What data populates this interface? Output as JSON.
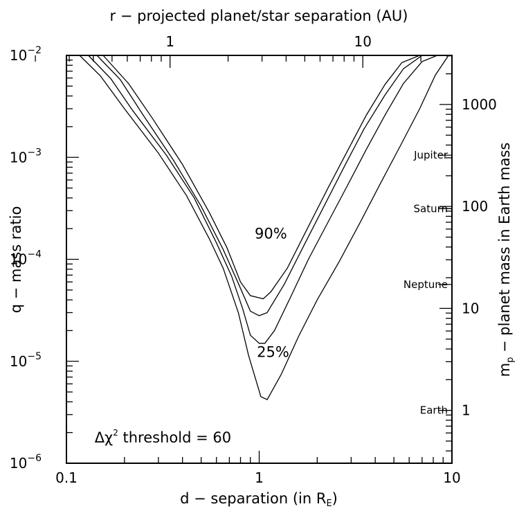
{
  "chart_data": {
    "type": "line",
    "xlabel": "d − separation (in R",
    "xlabel_sub": "E",
    "xlabel_end": ")",
    "ylabel": "q − mass ratio",
    "top_label": "r − projected planet/star separation (AU)",
    "right_label": "m",
    "right_label_sub": "p",
    "right_label_rest": " − planet mass in Earth mass",
    "x_scale": "log",
    "y_scale": "log",
    "xlim": [
      0.1,
      10
    ],
    "ylim": [
      1e-06,
      0.01
    ],
    "x_ticks": [
      {
        "value": 0.1,
        "label": "0.1"
      },
      {
        "value": 1,
        "label": "1"
      },
      {
        "value": 10,
        "label": "10"
      }
    ],
    "y_ticks": [
      {
        "value": 0.01,
        "base": "10",
        "exp": "−2"
      },
      {
        "value": 0.001,
        "base": "10",
        "exp": "−3"
      },
      {
        "value": 0.0001,
        "base": "10",
        "exp": "−4"
      },
      {
        "value": 1e-05,
        "base": "10",
        "exp": "−5"
      },
      {
        "value": 1e-06,
        "base": "10",
        "exp": "−6"
      }
    ],
    "top_axis_ticks": [
      {
        "d": 0.3448,
        "label": "1"
      },
      {
        "d": 3.448,
        "label": "10"
      }
    ],
    "top_axis_minor_d": [
      0.069,
      0.1034,
      0.1379,
      0.1724,
      0.2069,
      0.2414,
      0.2759,
      0.3103,
      0.6897,
      1.0345,
      1.3793,
      1.7241,
      2.069,
      2.4138,
      2.7586,
      3.1034,
      6.8966
    ],
    "right_axis_ticks": [
      {
        "q": 3.3e-06,
        "label": "1"
      },
      {
        "q": 3.3e-05,
        "label": "10"
      },
      {
        "q": 0.00033,
        "label": "100"
      },
      {
        "q": 0.0033,
        "label": "1000"
      }
    ],
    "planets": [
      {
        "name": "Jupiter",
        "q": 0.00105
      },
      {
        "name": "Saturn",
        "q": 0.000314
      },
      {
        "name": "Neptune",
        "q": 5.67e-05
      },
      {
        "name": "Earth",
        "q": 3.3e-06
      }
    ],
    "series": [
      {
        "x": [
          0.117,
          0.15,
          0.2,
          0.3,
          0.42,
          0.55,
          0.65,
          0.78,
          0.88,
          1.02,
          1.1,
          1.3,
          1.6,
          2.0,
          2.6,
          3.3,
          4.2,
          5.4,
          6.8,
          8.2,
          9.6
        ],
        "y": [
          0.01,
          0.0063,
          0.003,
          0.0011,
          0.00042,
          0.00016,
          8.2e-05,
          3e-05,
          1.15e-05,
          4.5e-06,
          4.2e-06,
          7.4e-06,
          1.75e-05,
          4e-05,
          9.5e-05,
          0.00022,
          0.00053,
          0.0013,
          0.003,
          0.0064,
          0.01
        ]
      },
      {
        "x": [
          0.13,
          0.17,
          0.22,
          0.33,
          0.46,
          0.6,
          0.72,
          0.82,
          0.9,
          1.0,
          1.07,
          1.2,
          1.45,
          1.8,
          2.3,
          2.9,
          3.6,
          4.5,
          5.6,
          7.0,
          8.4
        ],
        "y": [
          0.01,
          0.0059,
          0.0029,
          0.00105,
          0.0004,
          0.000145,
          6.8e-05,
          3.3e-05,
          1.8e-05,
          1.5e-05,
          1.5e-05,
          2e-05,
          4.2e-05,
          0.0001,
          0.00024,
          0.00055,
          0.0012,
          0.0026,
          0.0053,
          0.0087,
          0.01
        ]
      },
      {
        "x": [
          0.144,
          0.19,
          0.25,
          0.36,
          0.5,
          0.65,
          0.78,
          0.9,
          1.0,
          1.1,
          1.35,
          1.7,
          2.2,
          2.8,
          3.5,
          4.5,
          5.6,
          7.0,
          7.8
        ],
        "y": [
          0.01,
          0.0058,
          0.0026,
          0.00093,
          0.00033,
          0.000125,
          5.8e-05,
          3.1e-05,
          2.8e-05,
          3e-05,
          5.7e-05,
          0.000135,
          0.00035,
          0.00085,
          0.0019,
          0.0041,
          0.0074,
          0.01,
          0.01
        ]
      },
      {
        "x": [
          0.155,
          0.21,
          0.28,
          0.4,
          0.55,
          0.68,
          0.8,
          0.9,
          1.05,
          1.15,
          1.4,
          1.8,
          2.3,
          2.9,
          3.6,
          4.5,
          5.5,
          6.8
        ],
        "y": [
          0.01,
          0.0053,
          0.0024,
          0.00085,
          0.00029,
          0.00013,
          6e-05,
          4.4e-05,
          4.1e-05,
          4.8e-05,
          8.2e-05,
          0.00021,
          0.00052,
          0.0012,
          0.0026,
          0.0052,
          0.0085,
          0.01
        ]
      }
    ],
    "annotations": [
      {
        "text": "90%",
        "x": 1.15,
        "y": 0.00016
      },
      {
        "text": "25%",
        "x": 1.18,
        "y": 1.1e-05
      }
    ],
    "threshold_prefix": "Δχ",
    "threshold_exp": "2",
    "threshold_rest": " threshold = 60",
    "threshold_pos": {
      "x": 0.14,
      "y": 1.6e-06
    }
  }
}
